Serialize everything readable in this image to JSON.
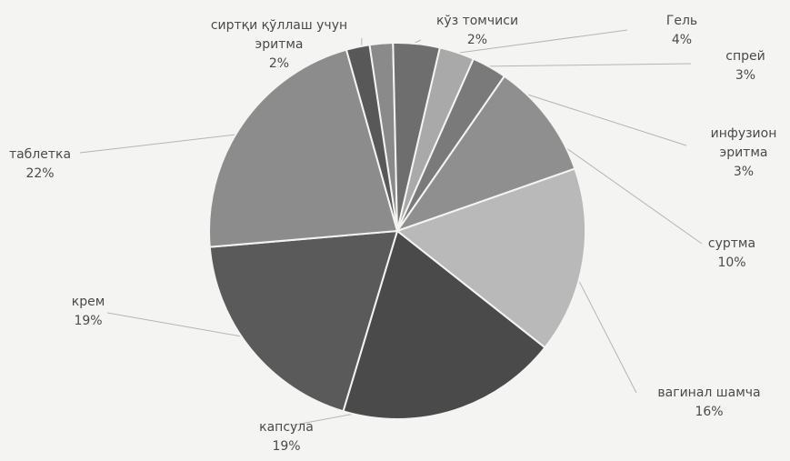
{
  "chart_data": {
    "type": "pie",
    "title": "",
    "slices": [
      {
        "label": "кўз томчиси",
        "value": 2,
        "value_text": "2%",
        "color": "#8a8a8a"
      },
      {
        "label": "Гель",
        "value": 4,
        "value_text": "4%",
        "color": "#6e6e6e"
      },
      {
        "label": "спрей",
        "value": 3,
        "value_text": "3%",
        "color": "#a9a9a9"
      },
      {
        "label": "инфузион эритма",
        "value": 3,
        "value_text": "3%",
        "color": "#7a7a7a"
      },
      {
        "label": "суртма",
        "value": 10,
        "value_text": "10%",
        "color": "#8f8f8f"
      },
      {
        "label": "вагинал шамча",
        "value": 16,
        "value_text": "16%",
        "color": "#b9b9b9"
      },
      {
        "label": "капсула",
        "value": 19,
        "value_text": "19%",
        "color": "#4a4a4a"
      },
      {
        "label": "крем",
        "value": 19,
        "value_text": "19%",
        "color": "#5a5a5a"
      },
      {
        "label": "таблетка",
        "value": 22,
        "value_text": "22%",
        "color": "#8c8c8c"
      },
      {
        "label": "сиртқи қўллаш учун эритма",
        "value": 2,
        "value_text": "2%",
        "color": "#585858"
      }
    ],
    "legend": "none"
  }
}
